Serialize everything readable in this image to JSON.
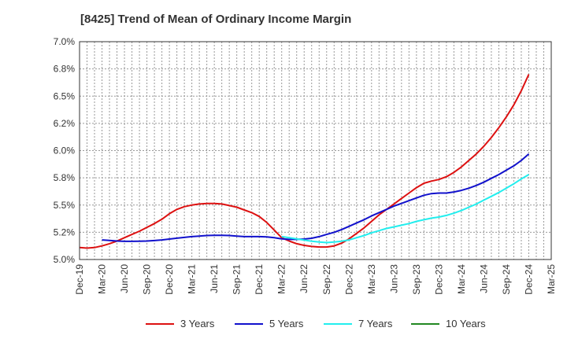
{
  "chart_data": {
    "type": "line",
    "title": "[8425]  Trend of Mean of Ordinary Income Margin",
    "xlabel": "",
    "ylabel": "",
    "ylim": [
      5.0,
      7.0
    ],
    "y_ticks": [
      "5.0%",
      "5.2%",
      "5.5%",
      "5.8%",
      "6.0%",
      "6.2%",
      "6.5%",
      "6.8%",
      "7.0%"
    ],
    "y_tick_values": [
      5.0,
      5.25,
      5.5,
      5.75,
      6.0,
      6.25,
      6.5,
      6.75,
      7.0
    ],
    "x_ticks": [
      "Dec-19",
      "Mar-20",
      "Jun-20",
      "Sep-20",
      "Dec-20",
      "Mar-21",
      "Jun-21",
      "Sep-21",
      "Dec-21",
      "Mar-22",
      "Jun-22",
      "Sep-22",
      "Dec-22",
      "Mar-23",
      "Jun-23",
      "Sep-23",
      "Dec-23",
      "Mar-24",
      "Jun-24",
      "Sep-24",
      "Dec-24",
      "Mar-25"
    ],
    "grid": true,
    "legend_position": "bottom",
    "series": [
      {
        "name": "3 Years",
        "color": "#dd1111",
        "x": [
          "Dec-19",
          "Jan-20",
          "Feb-20",
          "Mar-20",
          "Apr-20",
          "May-20",
          "Jun-20",
          "Jul-20",
          "Aug-20",
          "Sep-20",
          "Oct-20",
          "Nov-20",
          "Dec-20",
          "Jan-21",
          "Feb-21",
          "Mar-21",
          "Apr-21",
          "May-21",
          "Jun-21",
          "Jul-21",
          "Aug-21",
          "Sep-21",
          "Oct-21",
          "Nov-21",
          "Dec-21",
          "Jan-22",
          "Feb-22",
          "Mar-22",
          "Apr-22",
          "May-22",
          "Jun-22",
          "Jul-22",
          "Aug-22",
          "Sep-22",
          "Oct-22",
          "Nov-22",
          "Dec-22",
          "Jan-23",
          "Feb-23",
          "Mar-23",
          "Apr-23",
          "May-23",
          "Jun-23",
          "Jul-23",
          "Aug-23",
          "Sep-23",
          "Oct-23",
          "Nov-23",
          "Dec-23",
          "Jan-24",
          "Feb-24",
          "Mar-24",
          "Apr-24",
          "May-24",
          "Jun-24",
          "Jul-24",
          "Aug-24",
          "Sep-24",
          "Oct-24",
          "Nov-24",
          "Dec-24"
        ],
        "values": [
          5.11,
          5.105,
          5.11,
          5.125,
          5.145,
          5.17,
          5.2,
          5.23,
          5.26,
          5.295,
          5.33,
          5.37,
          5.42,
          5.46,
          5.485,
          5.5,
          5.51,
          5.515,
          5.515,
          5.51,
          5.495,
          5.48,
          5.455,
          5.43,
          5.395,
          5.34,
          5.27,
          5.2,
          5.17,
          5.145,
          5.13,
          5.12,
          5.115,
          5.115,
          5.125,
          5.15,
          5.19,
          5.24,
          5.29,
          5.35,
          5.41,
          5.46,
          5.51,
          5.56,
          5.61,
          5.66,
          5.7,
          5.72,
          5.735,
          5.76,
          5.8,
          5.85,
          5.91,
          5.97,
          6.04,
          6.12,
          6.21,
          6.31,
          6.42,
          6.55,
          6.7
        ]
      },
      {
        "name": "5 Years",
        "color": "#1111cc",
        "x": [
          "Mar-20",
          "Apr-20",
          "May-20",
          "Jun-20",
          "Jul-20",
          "Aug-20",
          "Sep-20",
          "Oct-20",
          "Nov-20",
          "Dec-20",
          "Jan-21",
          "Feb-21",
          "Mar-21",
          "Apr-21",
          "May-21",
          "Jun-21",
          "Jul-21",
          "Aug-21",
          "Sep-21",
          "Oct-21",
          "Nov-21",
          "Dec-21",
          "Jan-22",
          "Feb-22",
          "Mar-22",
          "Apr-22",
          "May-22",
          "Jun-22",
          "Jul-22",
          "Aug-22",
          "Sep-22",
          "Oct-22",
          "Nov-22",
          "Dec-22",
          "Jan-23",
          "Feb-23",
          "Mar-23",
          "Apr-23",
          "May-23",
          "Jun-23",
          "Jul-23",
          "Aug-23",
          "Sep-23",
          "Oct-23",
          "Nov-23",
          "Dec-23",
          "Jan-24",
          "Feb-24",
          "Mar-24",
          "Apr-24",
          "May-24",
          "Jun-24",
          "Jul-24",
          "Aug-24",
          "Sep-24",
          "Oct-24",
          "Nov-24",
          "Dec-24"
        ],
        "values": [
          5.18,
          5.175,
          5.17,
          5.167,
          5.167,
          5.168,
          5.17,
          5.174,
          5.18,
          5.188,
          5.196,
          5.203,
          5.21,
          5.215,
          5.22,
          5.222,
          5.222,
          5.22,
          5.215,
          5.21,
          5.21,
          5.21,
          5.207,
          5.2,
          5.19,
          5.185,
          5.185,
          5.188,
          5.195,
          5.21,
          5.23,
          5.25,
          5.275,
          5.305,
          5.335,
          5.365,
          5.4,
          5.43,
          5.46,
          5.49,
          5.515,
          5.54,
          5.565,
          5.59,
          5.605,
          5.61,
          5.61,
          5.62,
          5.635,
          5.655,
          5.68,
          5.71,
          5.745,
          5.78,
          5.82,
          5.86,
          5.91,
          5.97
        ]
      },
      {
        "name": "7 Years",
        "color": "#22eeee",
        "x": [
          "Mar-22",
          "Apr-22",
          "May-22",
          "Jun-22",
          "Jul-22",
          "Aug-22",
          "Sep-22",
          "Oct-22",
          "Nov-22",
          "Dec-22",
          "Jan-23",
          "Feb-23",
          "Mar-23",
          "Apr-23",
          "May-23",
          "Jun-23",
          "Jul-23",
          "Aug-23",
          "Sep-23",
          "Oct-23",
          "Nov-23",
          "Dec-23",
          "Jan-24",
          "Feb-24",
          "Mar-24",
          "Apr-24",
          "May-24",
          "Jun-24",
          "Jul-24",
          "Aug-24",
          "Sep-24",
          "Oct-24",
          "Nov-24",
          "Dec-24"
        ],
        "values": [
          5.21,
          5.2,
          5.19,
          5.178,
          5.168,
          5.16,
          5.155,
          5.16,
          5.168,
          5.18,
          5.2,
          5.22,
          5.245,
          5.265,
          5.285,
          5.3,
          5.315,
          5.33,
          5.35,
          5.365,
          5.38,
          5.39,
          5.405,
          5.425,
          5.45,
          5.48,
          5.51,
          5.545,
          5.58,
          5.615,
          5.655,
          5.695,
          5.74,
          5.78
        ]
      },
      {
        "name": "10 Years",
        "color": "#228822",
        "x": [],
        "values": []
      }
    ]
  }
}
